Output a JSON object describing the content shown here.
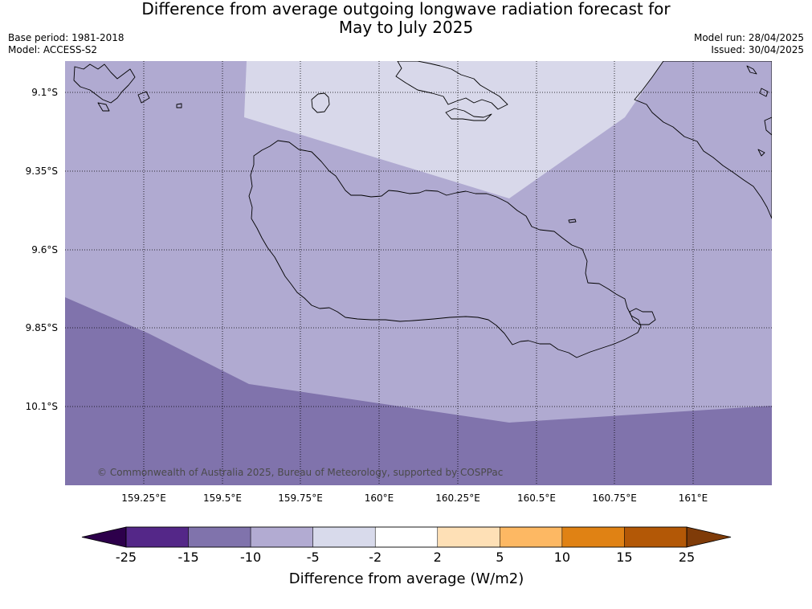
{
  "header": {
    "title_line1": "Difference from average outgoing longwave radiation forecast for",
    "title_line2": "May to July 2025",
    "base_period": "Base period: 1981-2018",
    "model": "Model: ACCESS-S2",
    "model_run": "Model run: 28/04/2025",
    "issued": "Issued: 30/04/2025"
  },
  "map": {
    "lat_labels": [
      "9.1°S",
      "9.35°S",
      "9.6°S",
      "9.85°S",
      "10.1°S"
    ],
    "lon_labels": [
      "159.25°E",
      "159.5°E",
      "159.75°E",
      "160°E",
      "160.25°E",
      "160.5°E",
      "160.75°E",
      "161°E"
    ],
    "copyright": "© Commonwealth of Australia 2025, Bureau of Meteorology, supported by COSPPac",
    "grid_style": "dotted",
    "region_colors": {
      "light": "#d8d8ea",
      "medium": "#b0aad1",
      "dark": "#8073ac"
    }
  },
  "colorbar": {
    "title": "Difference from average (W/m2)",
    "ticks": [
      "-25",
      "-15",
      "-10",
      "-5",
      "-2",
      "2",
      "5",
      "10",
      "15",
      "25"
    ],
    "colors": [
      "#542788",
      "#8073ac",
      "#b2abd2",
      "#d8daeb",
      "#ffffff",
      "#fee0b6",
      "#fdb863",
      "#e08214",
      "#b35806"
    ],
    "under_color": "#2d004b",
    "over_color": "#7f3b08"
  }
}
